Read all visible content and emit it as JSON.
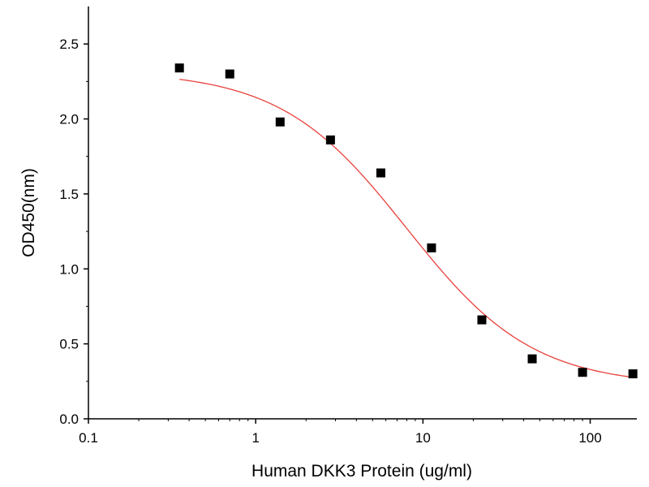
{
  "chart_data": {
    "type": "scatter",
    "title": "",
    "xlabel": "Human DKK3 Protein (ug/ml)",
    "ylabel": "OD450(nm)",
    "xscale": "log",
    "xlim": [
      0.1,
      190
    ],
    "ylim": [
      0,
      2.75
    ],
    "xticks": [
      0.1,
      1,
      10,
      100
    ],
    "xtick_labels": [
      "0.1",
      "1",
      "10",
      "100"
    ],
    "yticks": [
      0,
      0.5,
      1.0,
      1.5,
      2.0,
      2.5
    ],
    "ytick_labels": [
      "0.0",
      "0.5",
      "1.0",
      "1.5",
      "2.0",
      "2.5"
    ],
    "grid": false,
    "series": [
      {
        "name": "data",
        "marker": "square",
        "color": "#000000",
        "x": [
          0.35,
          0.7,
          1.4,
          2.8,
          5.6,
          11.25,
          22.5,
          45,
          90,
          180
        ],
        "y": [
          2.34,
          2.3,
          1.98,
          1.86,
          1.64,
          1.14,
          0.66,
          0.4,
          0.31,
          0.3
        ]
      },
      {
        "name": "fit",
        "line": true,
        "color": "#e8413c",
        "fit": {
          "model": "4PL",
          "top": 2.32,
          "bottom": 0.22,
          "ec50": 8.0,
          "hill": 1.15,
          "x_range": [
            0.35,
            180
          ]
        }
      }
    ]
  }
}
